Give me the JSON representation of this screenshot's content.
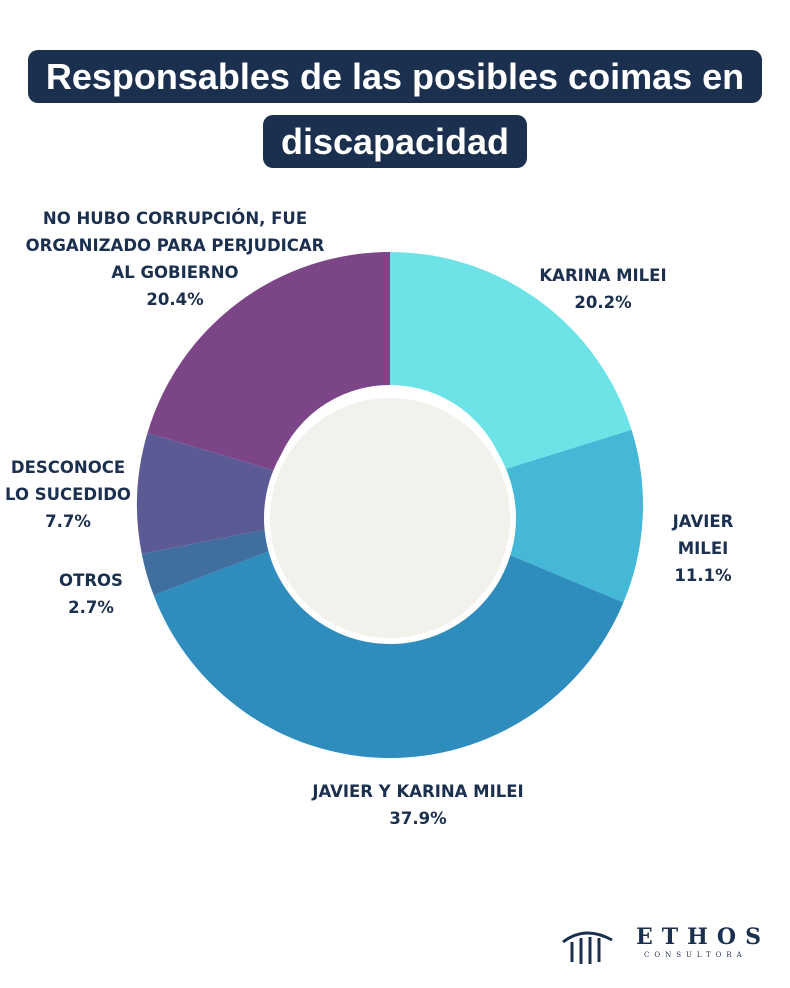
{
  "chart_data": {
    "type": "donut",
    "title": "Responsables de las posibles coimas en discapacidad",
    "categories": [
      "KARINA MILEI",
      "JAVIER MILEI",
      "JAVIER Y KARINA  MILEI",
      "OTROS",
      "DESCONOCE\nLO SUCEDIDO",
      "NO HUBO CORRUPCIÓN, FUE\nORGANIZADO PARA PERJUDICAR\nAL GOBIERNO"
    ],
    "values": [
      20.2,
      11.1,
      37.9,
      2.7,
      7.7,
      20.4
    ],
    "value_labels": [
      "20.2%",
      "11.1%",
      "37.9%",
      "2.7%",
      "7.7%",
      "20.4%"
    ],
    "colors": [
      "#6de3e8",
      "#45b8d8",
      "#2f8dbd",
      "#3f6e9f",
      "#5c5a94",
      "#7b4588"
    ]
  },
  "logo": {
    "name": "ETHOS",
    "tagline": "CONSULTORA"
  }
}
